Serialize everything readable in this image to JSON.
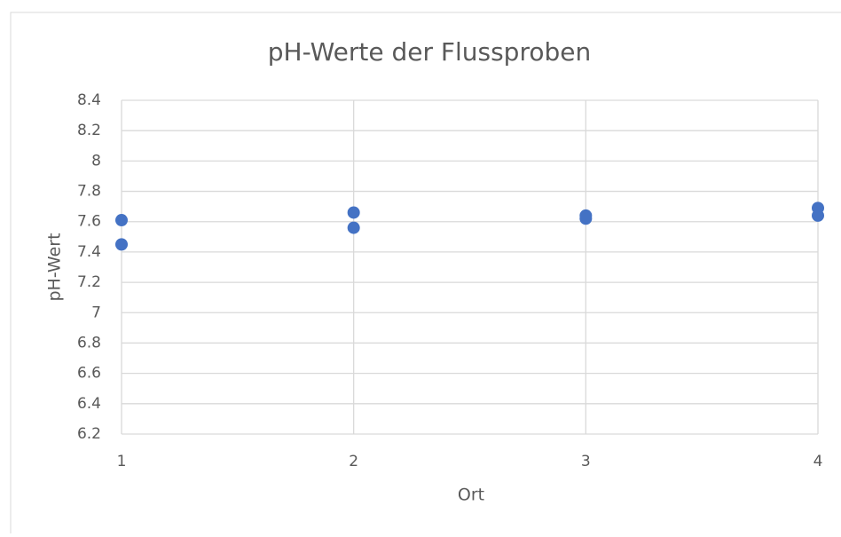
{
  "chart_data": {
    "type": "scatter",
    "title": "pH-Werte der Flussproben",
    "x_label": "Ort",
    "y_label": "pH-Wert",
    "x": [
      1,
      1,
      2,
      2,
      3,
      3,
      4,
      4
    ],
    "values": [
      7.61,
      7.45,
      7.66,
      7.56,
      7.64,
      7.62,
      7.69,
      7.64
    ],
    "color": "#4472c4",
    "xlim": [
      1,
      4
    ],
    "xticks": [
      1,
      2,
      3,
      4
    ],
    "ylim": [
      6.2,
      8.4
    ],
    "yticks": [
      6.2,
      6.4,
      6.6,
      6.8,
      7,
      7.2,
      7.4,
      7.6,
      7.8,
      8,
      8.2,
      8.4
    ],
    "grid": true
  }
}
